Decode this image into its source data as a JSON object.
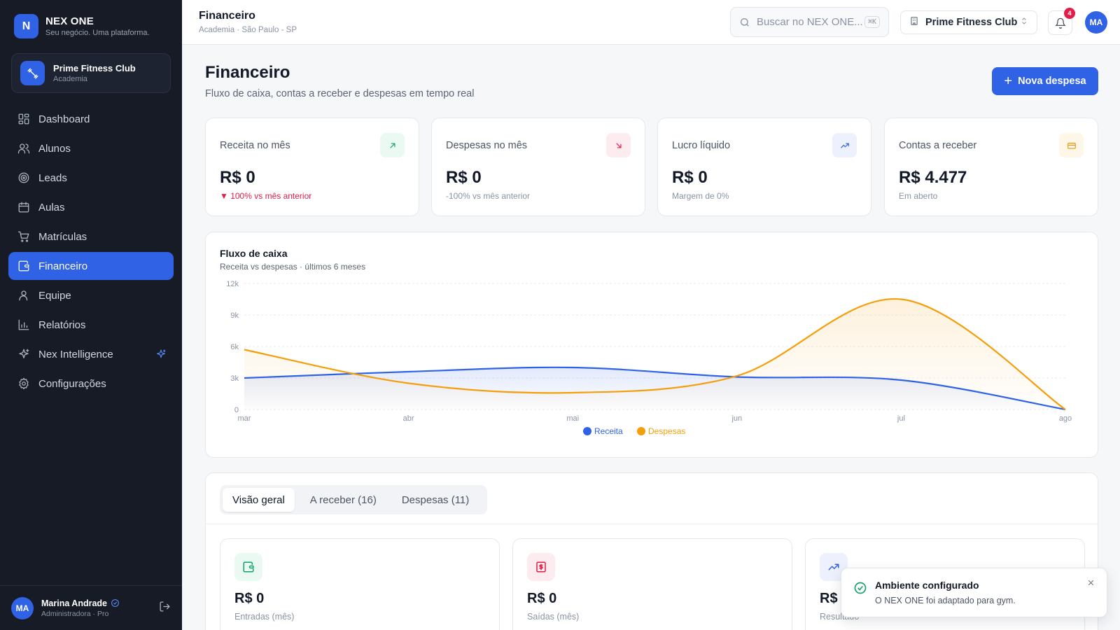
{
  "brand": {
    "logo_letter": "N",
    "name": "NEX ONE",
    "tagline": "Seu negócio. Uma plataforma."
  },
  "org": {
    "name": "Prime Fitness Club",
    "type": "Academia"
  },
  "sidebar": {
    "items": [
      {
        "label": "Dashboard",
        "icon": "dashboard-icon",
        "active": false
      },
      {
        "label": "Alunos",
        "icon": "users-icon",
        "active": false
      },
      {
        "label": "Leads",
        "icon": "target-icon",
        "active": false
      },
      {
        "label": "Aulas",
        "icon": "calendar-icon",
        "active": false
      },
      {
        "label": "Matrículas",
        "icon": "cart-icon",
        "active": false
      },
      {
        "label": "Financeiro",
        "icon": "wallet-icon",
        "active": true
      },
      {
        "label": "Equipe",
        "icon": "team-icon",
        "active": false
      },
      {
        "label": "Relatórios",
        "icon": "bar-chart-icon",
        "active": false
      },
      {
        "label": "Nex Intelligence",
        "icon": "sparkles-icon",
        "active": false
      },
      {
        "label": "Configurações",
        "icon": "gear-icon",
        "active": false
      }
    ]
  },
  "user": {
    "initials": "MA",
    "name": "Marina Andrade",
    "role": "Administradora · Pro"
  },
  "topbar": {
    "title": "Financeiro",
    "subtitle": "Academia · São Paulo - SP",
    "search_placeholder": "Buscar no NEX ONE...",
    "shortcut": "⌘K",
    "org_select": "Prime Fitness Club",
    "notification_count": "4",
    "avatar": "MA"
  },
  "page": {
    "title": "Financeiro",
    "subtitle": "Fluxo de caixa, contas a receber e despesas em tempo real",
    "new_button": "Nova despesa"
  },
  "kpis": [
    {
      "label": "Receita no mês",
      "value": "R$ 0",
      "foot": "▼ 100% vs mês anterior",
      "foot_negative": true,
      "icon": "arrow-up-right-icon",
      "color": "#10a36a",
      "bg": "#eafaf2"
    },
    {
      "label": "Despesas no mês",
      "value": "R$ 0",
      "foot": "-100% vs mês anterior",
      "foot_negative": false,
      "icon": "arrow-down-right-icon",
      "color": "#e11d48",
      "bg": "#fdecef"
    },
    {
      "label": "Lucro líquido",
      "value": "R$ 0",
      "foot": "Margem de 0%",
      "foot_negative": false,
      "icon": "trending-up-icon",
      "color": "#2f62e4",
      "bg": "#ecf1fd"
    },
    {
      "label": "Contas a receber",
      "value": "R$ 4.477",
      "foot": "Em aberto",
      "foot_negative": false,
      "icon": "card-icon",
      "color": "#e39a12",
      "bg": "#fef6e6"
    }
  ],
  "chart_data": {
    "type": "area",
    "title": "Fluxo de caixa",
    "subtitle": "Receita vs despesas · últimos 6 meses",
    "categories": [
      "mar",
      "abr",
      "mai",
      "jun",
      "jul",
      "ago"
    ],
    "y_ticks": [
      "0",
      "3k",
      "6k",
      "9k",
      "12k"
    ],
    "ylim": [
      0,
      12000
    ],
    "grid": true,
    "legend": "bottom",
    "series": [
      {
        "name": "Receita",
        "color": "#2f62e4",
        "values": [
          3000,
          3600,
          4000,
          3100,
          2800,
          0
        ]
      },
      {
        "name": "Despesas",
        "color": "#f59e0b",
        "values": [
          5700,
          2500,
          1600,
          3200,
          10500,
          0
        ]
      }
    ]
  },
  "tabs": [
    {
      "label": "Visão geral",
      "active": true
    },
    {
      "label": "A receber (16)",
      "active": false
    },
    {
      "label": "Despesas (11)",
      "active": false
    }
  ],
  "summary": [
    {
      "value": "R$ 0",
      "label": "Entradas (mês)",
      "icon": "wallet-icon",
      "color": "#10a36a",
      "bg": "#eafaf2"
    },
    {
      "value": "R$ 0",
      "label": "Saídas (mês)",
      "icon": "receipt-icon",
      "color": "#e11d48",
      "bg": "#fdecef"
    },
    {
      "value": "R$ 0",
      "label": "Resultado",
      "icon": "trending-up-icon",
      "color": "#2f62e4",
      "bg": "#ecf1fd"
    }
  ],
  "toast": {
    "title": "Ambiente configurado",
    "message": "O NEX ONE foi adaptado para gym."
  }
}
